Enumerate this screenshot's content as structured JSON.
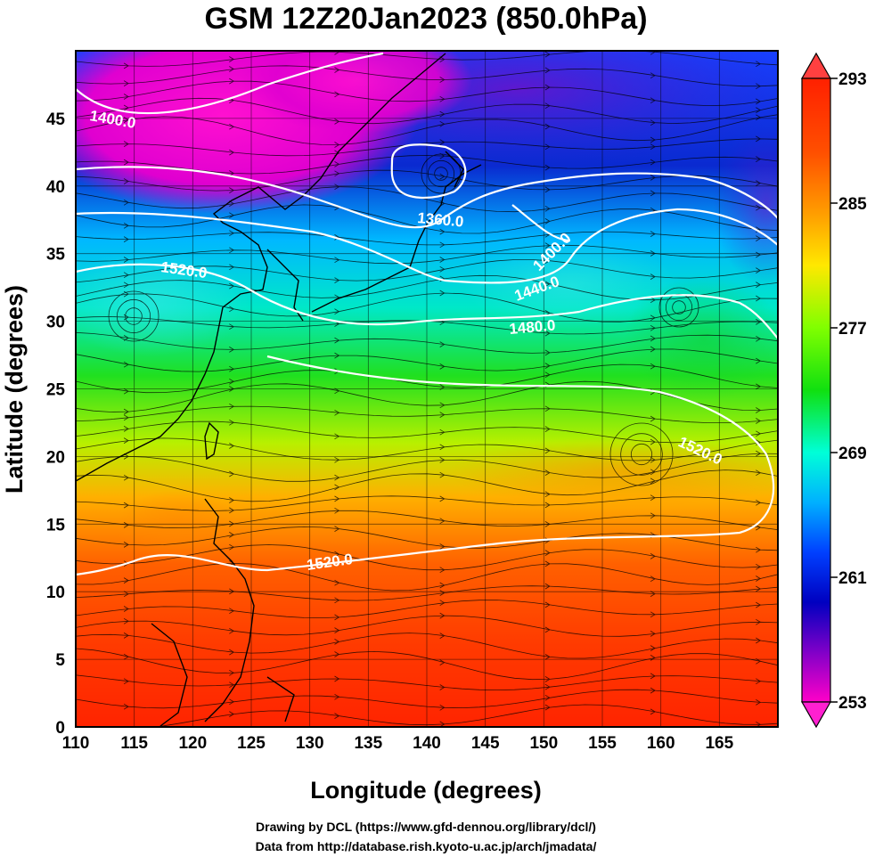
{
  "title": "GSM 12Z20Jan2023 (850.0hPa)",
  "xlabel": "Longitude (degrees)",
  "ylabel": "Latitude  (degrees)",
  "credits": [
    "Drawing by DCL (https://www.gfd-dennou.org/library/dcl/)",
    "Data from http://database.rish.kyoto-u.ac.jp/arch/jmadata/"
  ],
  "map": {
    "lon_range": [
      110,
      170
    ],
    "lat_range": [
      0,
      50
    ],
    "x_ticks": [
      "110",
      "115",
      "120",
      "125",
      "130",
      "135",
      "140",
      "145",
      "150",
      "155",
      "160",
      "165"
    ],
    "y_ticks": [
      "0",
      "5",
      "10",
      "15",
      "20",
      "25",
      "30",
      "35",
      "40",
      "45"
    ]
  },
  "colorbar": {
    "ticks": [
      "293",
      "285",
      "277",
      "269",
      "261",
      "253"
    ],
    "colors": [
      "#ff2000",
      "#ff7000",
      "#ffd800",
      "#a8ff00",
      "#10e800",
      "#00ffd8",
      "#00a0ff",
      "#0030ff",
      "#0000c0",
      "#8000c0",
      "#ff00c8"
    ]
  },
  "contour_labels": [
    "1400.0",
    "1360.0",
    "1520.0",
    "1400.0",
    "1440.0",
    "1480.0",
    "1520.0",
    "1520.0"
  ],
  "chart_data": {
    "type": "heatmap",
    "variable_colorbar_range": [
      253,
      293
    ],
    "contour_levels_labeled": [
      1360.0,
      1400.0,
      1440.0,
      1480.0,
      1520.0
    ]
  }
}
